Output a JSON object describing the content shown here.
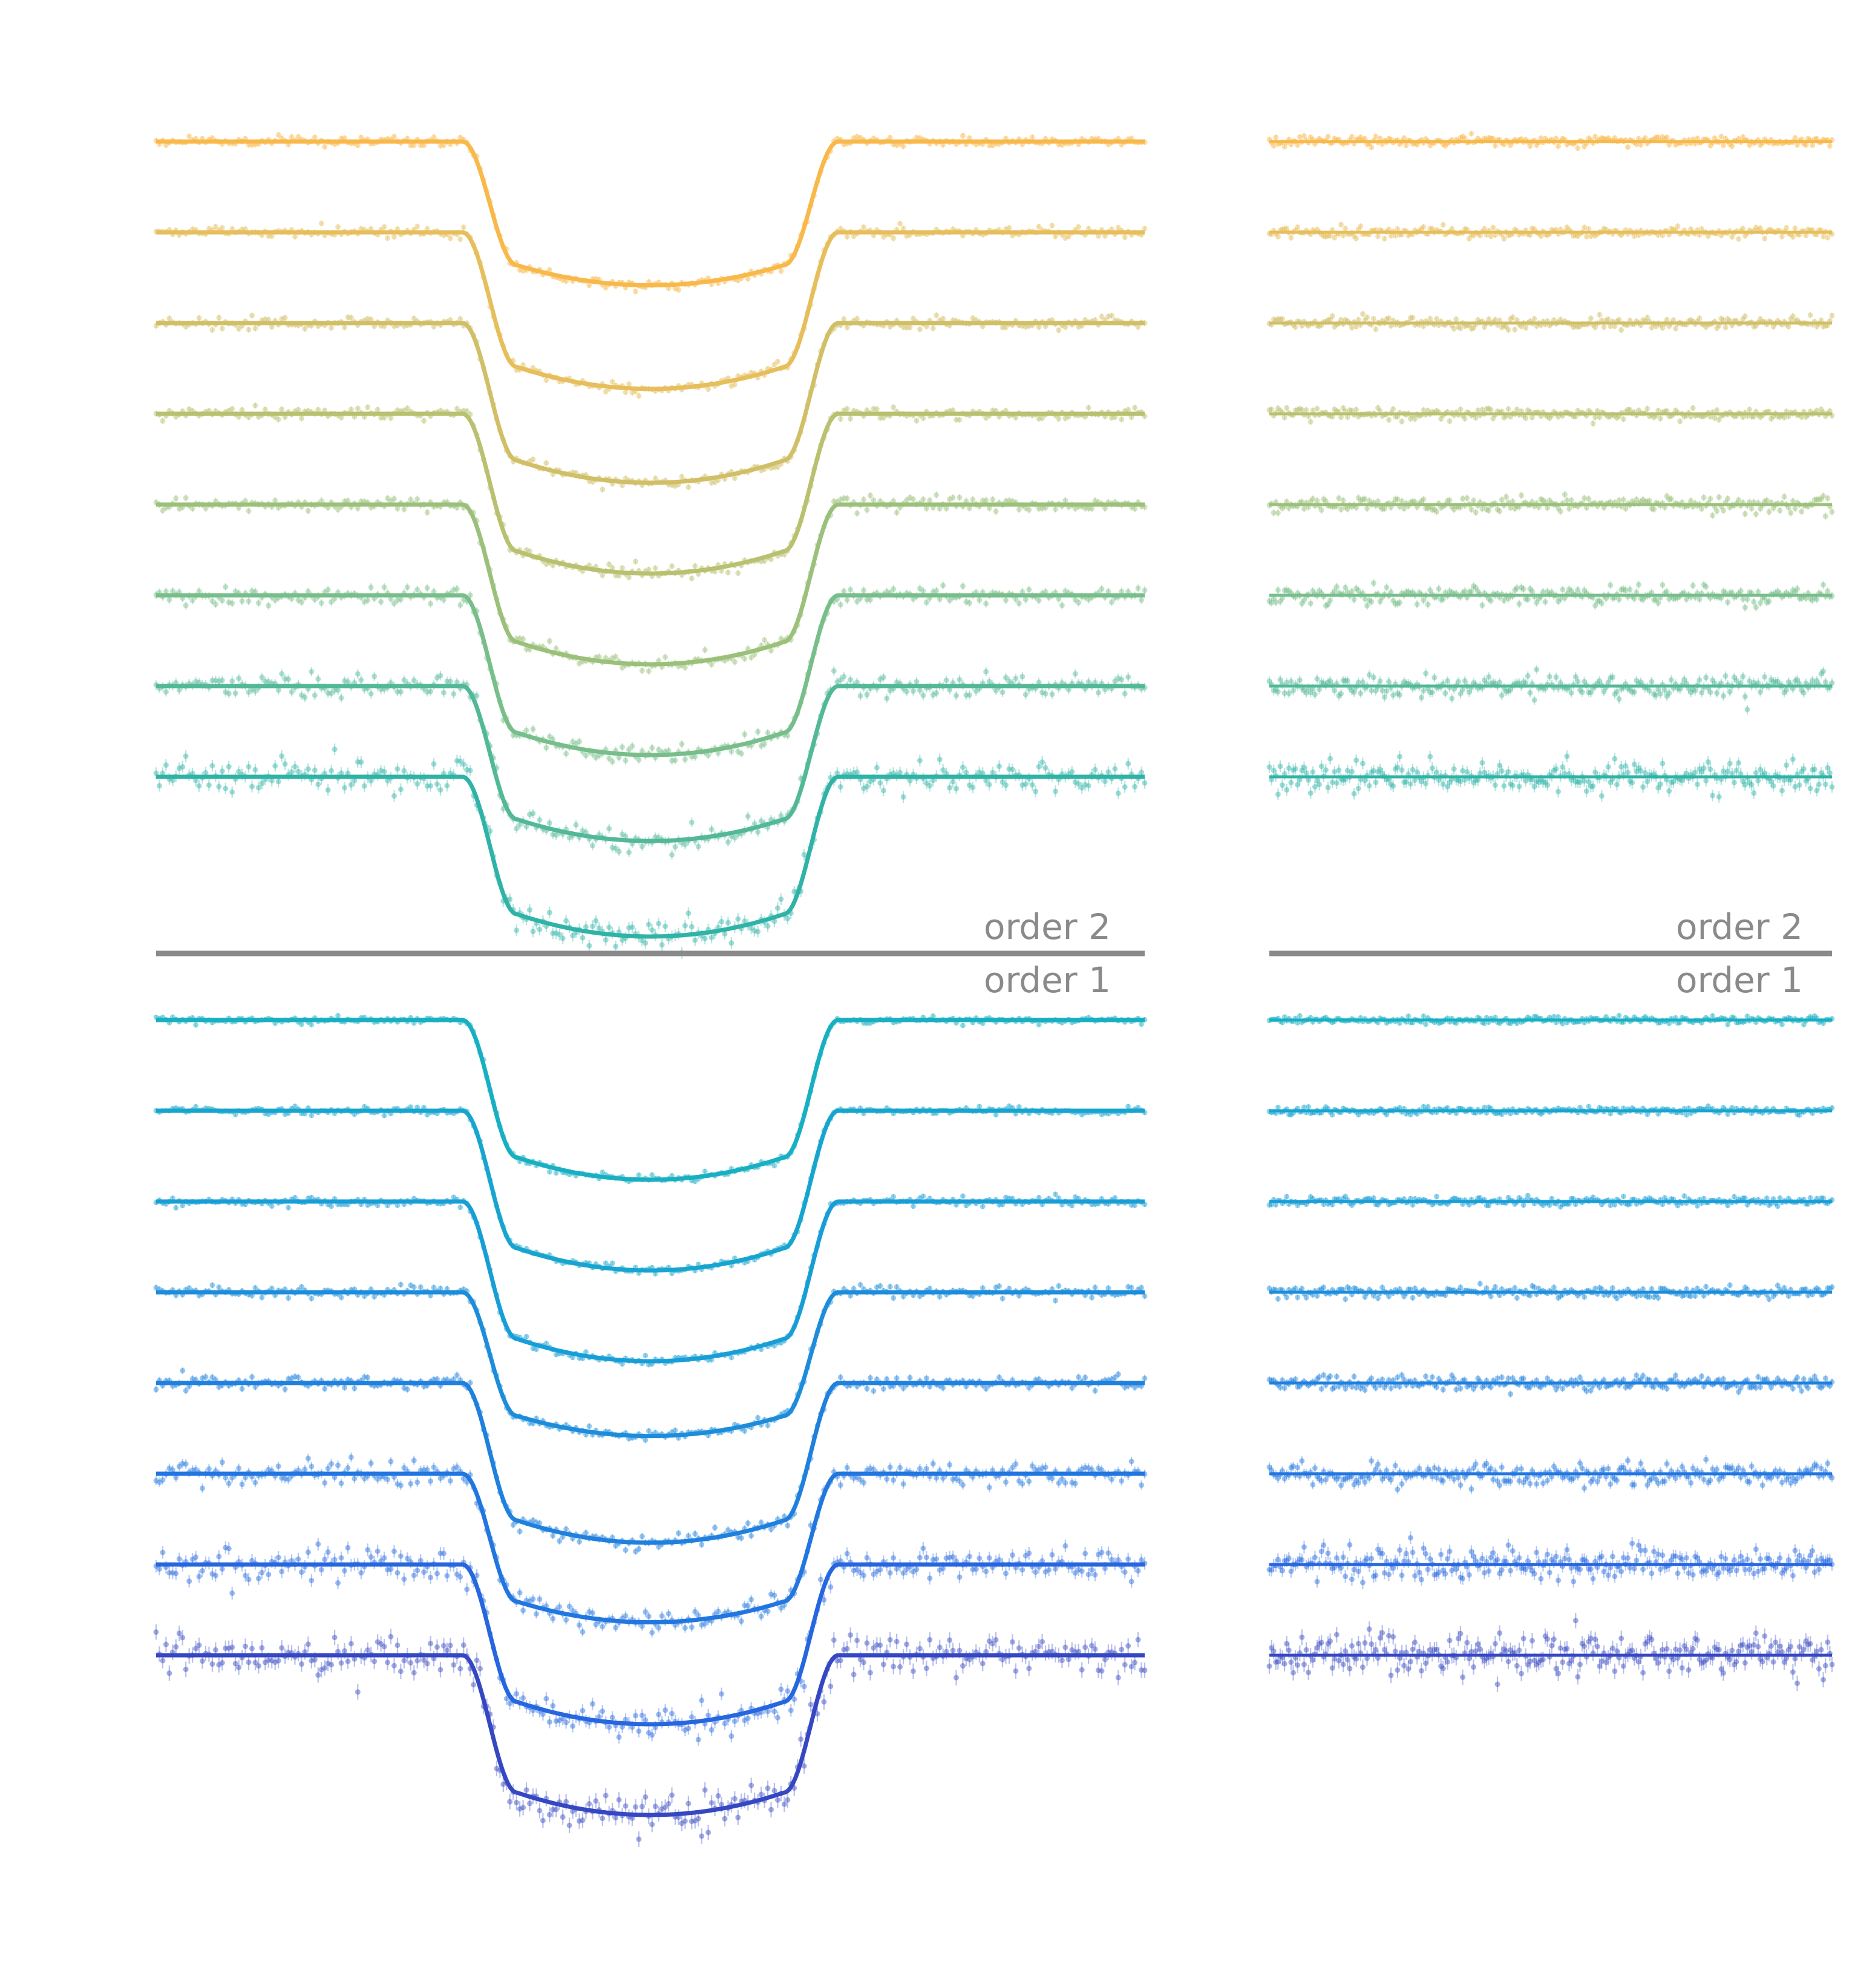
{
  "chart_data": [
    {
      "type": "scatter",
      "panel": "left",
      "description_role": "transit light curves with model fits",
      "order_labels": {
        "upper": "order 2",
        "lower": "order 1"
      },
      "x": {
        "ingress_start": 0.31,
        "ingress_end": 0.365,
        "egress_start": 0.635,
        "egress_end": 0.69
      },
      "series": [
        {
          "group": "order 2",
          "index": 0,
          "color": "#F8B84A",
          "offset": 0,
          "depth": 0.9,
          "noise": 0.07
        },
        {
          "group": "order 2",
          "index": 1,
          "color": "#E6BE5C",
          "offset": 1,
          "depth": 0.98,
          "noise": 0.07
        },
        {
          "group": "order 2",
          "index": 2,
          "color": "#D1BF68",
          "offset": 2,
          "depth": 1.0,
          "noise": 0.08
        },
        {
          "group": "order 2",
          "index": 3,
          "color": "#B9C06F",
          "offset": 3,
          "depth": 1.0,
          "noise": 0.08
        },
        {
          "group": "order 2",
          "index": 4,
          "color": "#9BC07A",
          "offset": 4,
          "depth": 1.0,
          "noise": 0.1
        },
        {
          "group": "order 2",
          "index": 5,
          "color": "#78BE8A",
          "offset": 5,
          "depth": 1.0,
          "noise": 0.12
        },
        {
          "group": "order 2",
          "index": 6,
          "color": "#52B898",
          "offset": 6,
          "depth": 0.97,
          "noise": 0.15
        },
        {
          "group": "order 2",
          "index": 7,
          "color": "#2FB3A6",
          "offset": 7,
          "depth": 1.0,
          "noise": 0.2
        },
        {
          "group": "order 1",
          "index": 0,
          "color": "#19AFC3",
          "offset": 0,
          "depth": 1.0,
          "noise": 0.05
        },
        {
          "group": "order 1",
          "index": 1,
          "color": "#17A5CF",
          "offset": 1,
          "depth": 1.0,
          "noise": 0.05
        },
        {
          "group": "order 1",
          "index": 2,
          "color": "#189ED6",
          "offset": 2,
          "depth": 1.0,
          "noise": 0.06
        },
        {
          "group": "order 1",
          "index": 3,
          "color": "#1D8DDB",
          "offset": 3,
          "depth": 0.9,
          "noise": 0.08
        },
        {
          "group": "order 1",
          "index": 4,
          "color": "#1F80DD",
          "offset": 4,
          "depth": 1.0,
          "noise": 0.1
        },
        {
          "group": "order 1",
          "index": 5,
          "color": "#2276E0",
          "offset": 5,
          "depth": 0.93,
          "noise": 0.15
        },
        {
          "group": "order 1",
          "index": 6,
          "color": "#2666DF",
          "offset": 6,
          "depth": 1.0,
          "noise": 0.22
        },
        {
          "group": "order 1",
          "index": 7,
          "color": "#3547C2",
          "offset": 7,
          "depth": 1.0,
          "noise": 0.28
        }
      ]
    },
    {
      "type": "scatter",
      "panel": "right",
      "description_role": "residuals",
      "order_labels": {
        "upper": "order 2",
        "lower": "order 1"
      },
      "series": [
        {
          "group": "order 2",
          "index": 0,
          "color": "#F8B84A",
          "offset": 0,
          "noise": 0.07
        },
        {
          "group": "order 2",
          "index": 1,
          "color": "#E6BE5C",
          "offset": 1,
          "noise": 0.07
        },
        {
          "group": "order 2",
          "index": 2,
          "color": "#D1BF68",
          "offset": 2,
          "noise": 0.08
        },
        {
          "group": "order 2",
          "index": 3,
          "color": "#B9C06F",
          "offset": 3,
          "noise": 0.08
        },
        {
          "group": "order 2",
          "index": 4,
          "color": "#9BC07A",
          "offset": 4,
          "noise": 0.1
        },
        {
          "group": "order 2",
          "index": 5,
          "color": "#78BE8A",
          "offset": 5,
          "noise": 0.12
        },
        {
          "group": "order 2",
          "index": 6,
          "color": "#52B898",
          "offset": 6,
          "noise": 0.15
        },
        {
          "group": "order 2",
          "index": 7,
          "color": "#2FB3A6",
          "offset": 7,
          "noise": 0.2
        },
        {
          "group": "order 1",
          "index": 0,
          "color": "#19AFC3",
          "offset": 0,
          "noise": 0.05
        },
        {
          "group": "order 1",
          "index": 1,
          "color": "#17A5CF",
          "offset": 1,
          "noise": 0.05
        },
        {
          "group": "order 1",
          "index": 2,
          "color": "#189ED6",
          "offset": 2,
          "noise": 0.06
        },
        {
          "group": "order 1",
          "index": 3,
          "color": "#1D8DDB",
          "offset": 3,
          "noise": 0.08
        },
        {
          "group": "order 1",
          "index": 4,
          "color": "#1F80DD",
          "offset": 4,
          "noise": 0.1
        },
        {
          "group": "order 1",
          "index": 5,
          "color": "#2276E0",
          "offset": 5,
          "noise": 0.15
        },
        {
          "group": "order 1",
          "index": 6,
          "color": "#2666DF",
          "offset": 6,
          "noise": 0.22
        },
        {
          "group": "order 1",
          "index": 7,
          "color": "#3547C2",
          "offset": 7,
          "noise": 0.28
        }
      ]
    }
  ],
  "divider_color": "#8a8a8a"
}
